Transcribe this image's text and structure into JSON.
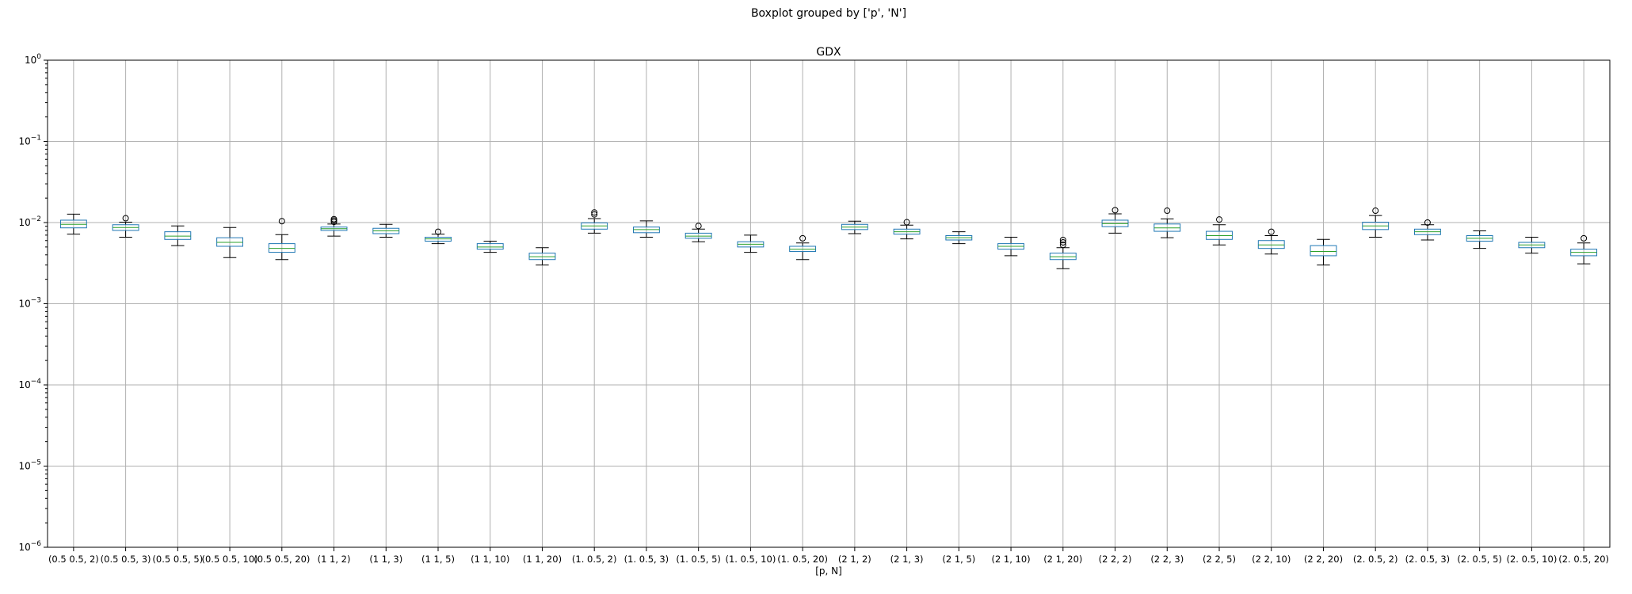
{
  "chart_data": {
    "type": "boxplot",
    "suptitle": "Boxplot grouped by ['p', 'N']",
    "title": "GDX",
    "xlabel": "[p, N]",
    "ylabel": "",
    "yscale": "log",
    "ylim": [
      1e-06,
      1
    ],
    "yticks": [
      {
        "value": 1,
        "label": "10",
        "exp": "0"
      },
      {
        "value": 0.1,
        "label": "10",
        "exp": "−1"
      },
      {
        "value": 0.01,
        "label": "10",
        "exp": "−2"
      },
      {
        "value": 0.001,
        "label": "10",
        "exp": "−3"
      },
      {
        "value": 0.0001,
        "label": "10",
        "exp": "−4"
      },
      {
        "value": 1e-05,
        "label": "10",
        "exp": "−5"
      },
      {
        "value": 1e-06,
        "label": "10",
        "exp": "−6"
      }
    ],
    "grid": true,
    "colors": {
      "box": "#1f77b4",
      "median": "#2ca02c",
      "whisker": "#000000",
      "grid": "#b0b0b0"
    },
    "boxes": [
      {
        "label": "(0.5 0.5, 2)",
        "whislo": 0.0072,
        "q1": 0.0086,
        "med": 0.0095,
        "q3": 0.0107,
        "whishi": 0.0127,
        "fliers": []
      },
      {
        "label": "(0.5 0.5, 3)",
        "whislo": 0.0066,
        "q1": 0.008,
        "med": 0.0087,
        "q3": 0.0094,
        "whishi": 0.0101,
        "fliers": [
          0.0113
        ]
      },
      {
        "label": "(0.5 0.5, 5)",
        "whislo": 0.0052,
        "q1": 0.0062,
        "med": 0.0068,
        "q3": 0.0077,
        "whishi": 0.0091,
        "fliers": []
      },
      {
        "label": "(0.5 0.5, 10)",
        "whislo": 0.0037,
        "q1": 0.0051,
        "med": 0.0057,
        "q3": 0.0065,
        "whishi": 0.0087,
        "fliers": []
      },
      {
        "label": "(0.5 0.5, 20)",
        "whislo": 0.0035,
        "q1": 0.0043,
        "med": 0.0048,
        "q3": 0.0055,
        "whishi": 0.0071,
        "fliers": [
          0.0104
        ]
      },
      {
        "label": "(1 1, 2)",
        "whislo": 0.0068,
        "q1": 0.008,
        "med": 0.0084,
        "q3": 0.0088,
        "whishi": 0.0096,
        "fliers": [
          0.0102,
          0.0106,
          0.011
        ]
      },
      {
        "label": "(1 1, 3)",
        "whislo": 0.0066,
        "q1": 0.0073,
        "med": 0.0079,
        "q3": 0.0085,
        "whishi": 0.0095,
        "fliers": []
      },
      {
        "label": "(1 1, 5)",
        "whislo": 0.0055,
        "q1": 0.0059,
        "med": 0.0063,
        "q3": 0.0066,
        "whishi": 0.0072,
        "fliers": [
          0.0077
        ]
      },
      {
        "label": "(1 1, 10)",
        "whislo": 0.0043,
        "q1": 0.0047,
        "med": 0.005,
        "q3": 0.0055,
        "whishi": 0.0059,
        "fliers": []
      },
      {
        "label": "(1 1, 20)",
        "whislo": 0.003,
        "q1": 0.0035,
        "med": 0.0038,
        "q3": 0.0042,
        "whishi": 0.0049,
        "fliers": []
      },
      {
        "label": "(1. 0.5, 2)",
        "whislo": 0.0074,
        "q1": 0.0083,
        "med": 0.0091,
        "q3": 0.0099,
        "whishi": 0.0112,
        "fliers": [
          0.0126,
          0.0133
        ]
      },
      {
        "label": "(1. 0.5, 3)",
        "whislo": 0.0066,
        "q1": 0.0075,
        "med": 0.0082,
        "q3": 0.0088,
        "whishi": 0.0105,
        "fliers": []
      },
      {
        "label": "(1. 0.5, 5)",
        "whislo": 0.0058,
        "q1": 0.0064,
        "med": 0.0068,
        "q3": 0.0074,
        "whishi": 0.0083,
        "fliers": [
          0.0091
        ]
      },
      {
        "label": "(1. 0.5, 10)",
        "whislo": 0.0043,
        "q1": 0.005,
        "med": 0.0054,
        "q3": 0.0058,
        "whishi": 0.007,
        "fliers": []
      },
      {
        "label": "(1. 0.5, 20)",
        "whislo": 0.0035,
        "q1": 0.0044,
        "med": 0.0047,
        "q3": 0.0051,
        "whishi": 0.0056,
        "fliers": [
          0.0064
        ]
      },
      {
        "label": "(2 1, 2)",
        "whislo": 0.0073,
        "q1": 0.0082,
        "med": 0.0088,
        "q3": 0.0095,
        "whishi": 0.0104,
        "fliers": []
      },
      {
        "label": "(2 1, 3)",
        "whislo": 0.0063,
        "q1": 0.0072,
        "med": 0.0077,
        "q3": 0.0083,
        "whishi": 0.0093,
        "fliers": [
          0.0101
        ]
      },
      {
        "label": "(2 1, 5)",
        "whislo": 0.0055,
        "q1": 0.0061,
        "med": 0.0065,
        "q3": 0.0069,
        "whishi": 0.0077,
        "fliers": []
      },
      {
        "label": "(2 1, 10)",
        "whislo": 0.0039,
        "q1": 0.0047,
        "med": 0.0051,
        "q3": 0.0055,
        "whishi": 0.0066,
        "fliers": []
      },
      {
        "label": "(2 1, 20)",
        "whislo": 0.0027,
        "q1": 0.0035,
        "med": 0.0038,
        "q3": 0.0042,
        "whishi": 0.0049,
        "fliers": [
          0.0053,
          0.0057,
          0.0061
        ]
      },
      {
        "label": "(2 2, 2)",
        "whislo": 0.0074,
        "q1": 0.0089,
        "med": 0.0097,
        "q3": 0.0107,
        "whishi": 0.0128,
        "fliers": [
          0.0142
        ]
      },
      {
        "label": "(2 2, 3)",
        "whislo": 0.0065,
        "q1": 0.0078,
        "med": 0.0086,
        "q3": 0.0096,
        "whishi": 0.0111,
        "fliers": [
          0.014
        ]
      },
      {
        "label": "(2 2, 5)",
        "whislo": 0.0053,
        "q1": 0.0062,
        "med": 0.0069,
        "q3": 0.0078,
        "whishi": 0.0094,
        "fliers": [
          0.0109
        ]
      },
      {
        "label": "(2 2, 10)",
        "whislo": 0.0041,
        "q1": 0.0048,
        "med": 0.0053,
        "q3": 0.006,
        "whishi": 0.0069,
        "fliers": [
          0.0077
        ]
      },
      {
        "label": "(2 2, 20)",
        "whislo": 0.003,
        "q1": 0.0039,
        "med": 0.0044,
        "q3": 0.0052,
        "whishi": 0.0062,
        "fliers": []
      },
      {
        "label": "(2. 0.5, 2)",
        "whislo": 0.0066,
        "q1": 0.0082,
        "med": 0.0091,
        "q3": 0.0101,
        "whishi": 0.0122,
        "fliers": [
          0.014
        ]
      },
      {
        "label": "(2. 0.5, 3)",
        "whislo": 0.0061,
        "q1": 0.0071,
        "med": 0.0077,
        "q3": 0.0083,
        "whishi": 0.0094,
        "fliers": [
          0.01
        ]
      },
      {
        "label": "(2. 0.5, 5)",
        "whislo": 0.0048,
        "q1": 0.0059,
        "med": 0.0064,
        "q3": 0.0069,
        "whishi": 0.0079,
        "fliers": []
      },
      {
        "label": "(2. 0.5, 10)",
        "whislo": 0.0042,
        "q1": 0.0049,
        "med": 0.0053,
        "q3": 0.0057,
        "whishi": 0.0066,
        "fliers": []
      },
      {
        "label": "(2. 0.5, 20)",
        "whislo": 0.0031,
        "q1": 0.0039,
        "med": 0.0043,
        "q3": 0.0047,
        "whishi": 0.0056,
        "fliers": [
          0.0064
        ]
      }
    ]
  }
}
